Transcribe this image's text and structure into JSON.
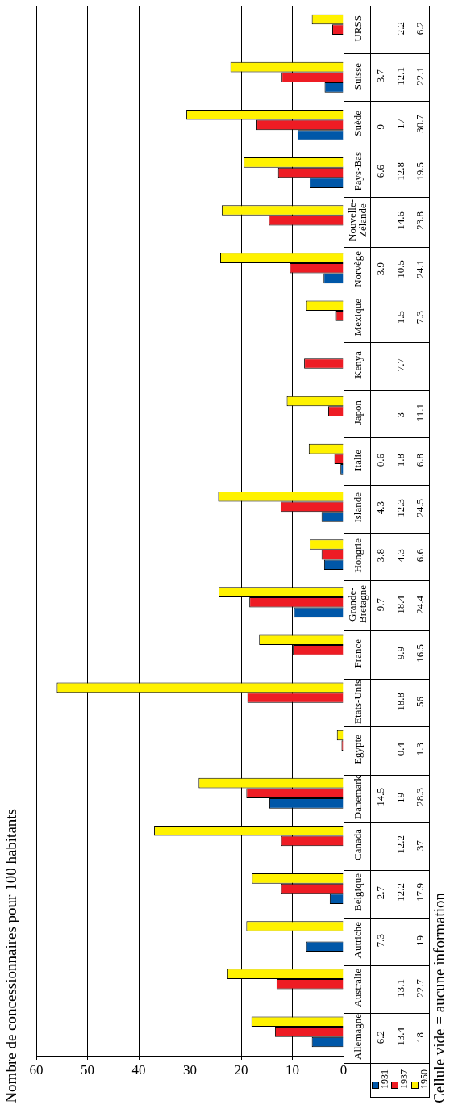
{
  "chart_data": {
    "type": "bar",
    "orientation": "horizontal",
    "title": "Nombre de concessionnaires pour 100 habitants",
    "categories": [
      "URSS",
      "Suisse",
      "Suède",
      "Pays-Bas",
      "Nouvelle-Zélande",
      "Norvège",
      "Mexique",
      "Kenya",
      "Japon",
      "Italie",
      "Islande",
      "Hongrie",
      "Grande-Bretagne",
      "France",
      "Etats-Unis",
      "Egypte",
      "Danemark",
      "Canada",
      "Belgique",
      "Autriche",
      "Australie",
      "Allemagne"
    ],
    "series": [
      {
        "name": "1931",
        "color": "#0057a8",
        "values": [
          null,
          3.7,
          9,
          6.6,
          null,
          3.9,
          null,
          null,
          null,
          0.6,
          4.3,
          3.8,
          9.7,
          null,
          null,
          null,
          14.5,
          null,
          2.7,
          7.3,
          null,
          6.2
        ]
      },
      {
        "name": "1937",
        "color": "#ee1c24",
        "values": [
          2.2,
          12.1,
          17,
          12.8,
          14.6,
          10.5,
          1.5,
          7.7,
          3,
          1.8,
          12.3,
          4.3,
          18.4,
          9.9,
          18.8,
          0.4,
          19,
          12.2,
          12.2,
          null,
          13.1,
          13.4
        ]
      },
      {
        "name": "1950",
        "color": "#fff200",
        "values": [
          6.2,
          22.1,
          30.7,
          19.5,
          23.8,
          24.1,
          7.3,
          null,
          11.1,
          6.8,
          24.5,
          6.6,
          24.4,
          16.5,
          56,
          1.3,
          28.3,
          37,
          17.9,
          19,
          22.7,
          18
        ]
      }
    ],
    "xlim": [
      60,
      0
    ],
    "xticks": [
      0,
      10,
      20,
      30,
      40,
      50,
      60
    ],
    "grid": "x",
    "legend": "bottom right",
    "data_labels": true,
    "annotations": [
      "Cellule vide = aucune information"
    ]
  }
}
